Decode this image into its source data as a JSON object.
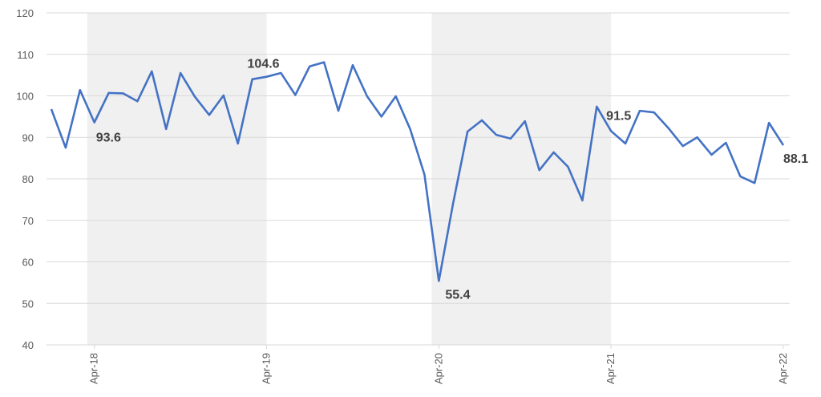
{
  "chart_data": {
    "type": "line",
    "x": [
      null,
      null,
      null,
      "Apr-18",
      null,
      null,
      null,
      null,
      null,
      null,
      null,
      null,
      null,
      null,
      null,
      "Apr-19",
      null,
      null,
      null,
      null,
      null,
      null,
      null,
      null,
      null,
      null,
      null,
      "Apr-20",
      null,
      null,
      null,
      null,
      null,
      null,
      null,
      null,
      null,
      null,
      null,
      "Apr-21",
      null,
      null,
      null,
      null,
      null,
      null,
      null,
      null,
      null,
      null,
      null,
      "Apr-22"
    ],
    "series": [
      {
        "color": "#4472c4",
        "values": [
          96.8,
          87.5,
          101.4,
          93.6,
          100.7,
          100.6,
          98.7,
          105.9,
          92.0,
          105.5,
          99.8,
          95.4,
          100.1,
          88.5,
          104.0,
          104.6,
          105.5,
          100.2,
          107.1,
          108.1,
          96.4,
          107.4,
          99.9,
          95.0,
          99.9,
          92.0,
          81.0,
          55.4,
          74.2,
          91.4,
          94.1,
          90.6,
          89.7,
          93.9,
          82.1,
          86.4,
          82.9,
          74.8,
          97.4,
          91.5,
          88.5,
          96.4,
          96.0,
          92.2,
          87.9,
          90.0,
          85.8,
          88.7,
          80.6,
          79.0,
          93.5,
          88.1
        ],
        "value_labels": [
          null,
          null,
          null,
          "93.6",
          null,
          null,
          null,
          null,
          null,
          null,
          null,
          null,
          null,
          null,
          null,
          "104.6",
          null,
          null,
          null,
          null,
          null,
          null,
          null,
          null,
          null,
          null,
          null,
          "55.4",
          null,
          null,
          null,
          null,
          null,
          null,
          null,
          null,
          null,
          null,
          null,
          "91.5",
          null,
          null,
          null,
          null,
          null,
          null,
          null,
          null,
          null,
          null,
          null,
          "88.1"
        ]
      }
    ],
    "ylim": [
      40,
      120
    ],
    "yticks": [
      40,
      50,
      60,
      70,
      80,
      90,
      100,
      110,
      120
    ],
    "grid": true,
    "shaded_bands": [
      {
        "from": "Apr-18",
        "to": "Apr-19",
        "color": "#f0f0f0"
      },
      {
        "from": "Apr-20",
        "to": "Apr-21",
        "color": "#f0f0f0"
      }
    ]
  }
}
